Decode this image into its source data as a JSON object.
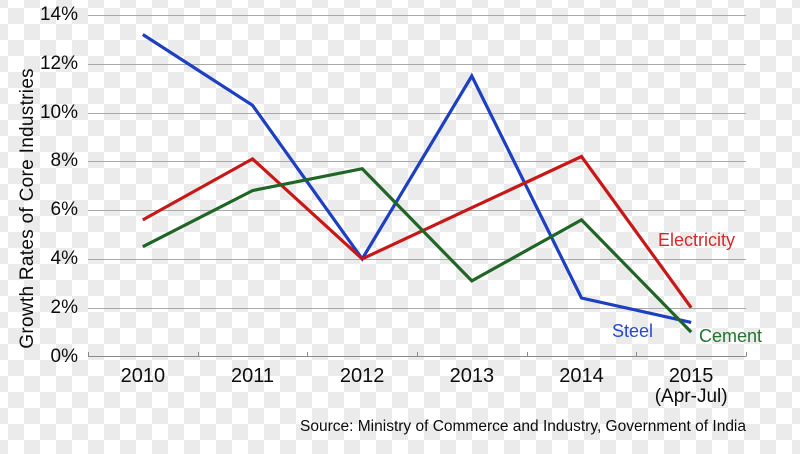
{
  "chart": {
    "grid_color": "#a8a8a8",
    "axis_color": "#8a8a8a",
    "text_color": "#0d0d0d"
  },
  "chart_data": {
    "type": "line",
    "title": "",
    "xlabel": "",
    "ylabel": "Growth Rates of Core Industries",
    "categories": [
      "2010",
      "2011",
      "2012",
      "2013",
      "2014",
      "2015"
    ],
    "last_category_note": "(Apr-Jul)",
    "ylim": [
      0,
      14
    ],
    "ytick_values": [
      14,
      12,
      10,
      8,
      6,
      4,
      2,
      0
    ],
    "ytick_labels": [
      "14%",
      "12%",
      "10%",
      "8%",
      "6%",
      "4%",
      "2%",
      "0%"
    ],
    "grid": "horizontal",
    "legend_position": "inline-labels-right",
    "series": [
      {
        "name": "Steel",
        "color": "#1d3fc2",
        "label_color": "#2848cc",
        "values": [
          13.2,
          10.3,
          4.0,
          11.5,
          2.4,
          1.4
        ]
      },
      {
        "name": "Electricity",
        "color": "#c91616",
        "label_color": "#da2828",
        "values": [
          5.6,
          8.1,
          4.0,
          6.1,
          8.2,
          2.0
        ]
      },
      {
        "name": "Cement",
        "color": "#1f6626",
        "label_color": "#20742c",
        "values": [
          4.5,
          6.8,
          7.7,
          3.1,
          5.6,
          1.0
        ]
      }
    ],
    "source": "Source: Ministry of Commerce and Industry, Government of India"
  }
}
